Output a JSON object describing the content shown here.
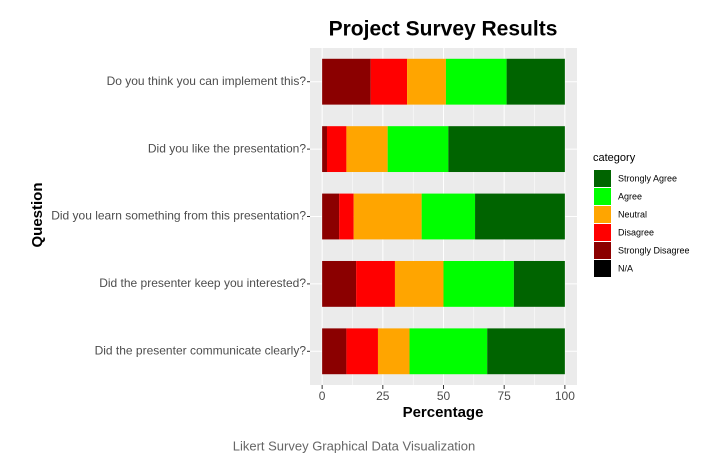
{
  "chart_data": {
    "type": "stacked-bar-horizontal",
    "title": "Project Survey Results",
    "x_label": "Percentage",
    "y_label": "Question",
    "legend_title": "category",
    "caption": "Likert Survey Graphical Data Visualization",
    "categories": [
      "Do you think you can implement this?",
      "Did you like the presentation?",
      "Did you learn something from this presentation?",
      "Did the presenter keep you interested?",
      "Did the presenter communicate clearly?"
    ],
    "series": [
      {
        "name": "Strongly Agree",
        "color": "#006400",
        "values": [
          24,
          48,
          37,
          21,
          32
        ]
      },
      {
        "name": "Agree",
        "color": "#00ff00",
        "values": [
          25,
          25,
          22,
          29,
          32
        ]
      },
      {
        "name": "Neutral",
        "color": "#ffa500",
        "values": [
          16,
          17,
          28,
          20,
          13
        ]
      },
      {
        "name": "Disagree",
        "color": "#ff0000",
        "values": [
          15,
          8,
          6,
          16,
          13
        ]
      },
      {
        "name": "Strongly Disagree",
        "color": "#8b0000",
        "values": [
          20,
          2,
          7,
          14,
          10
        ]
      },
      {
        "name": "N/A",
        "color": "#000000",
        "values": [
          0,
          0,
          0,
          0,
          0
        ]
      }
    ],
    "xlim": [
      -5,
      105
    ],
    "xticks": [
      0,
      25,
      50,
      75,
      100
    ],
    "grid": true,
    "legend": "right"
  }
}
